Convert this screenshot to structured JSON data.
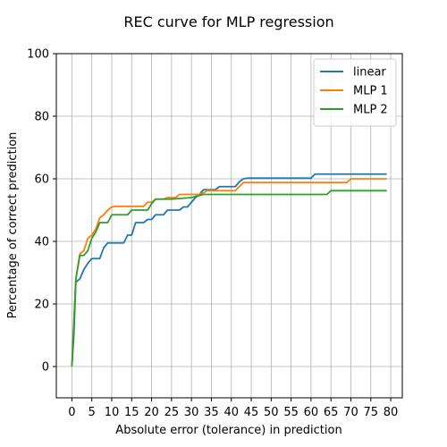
{
  "chart_data": {
    "type": "line",
    "title": "REC curve for MLP regression",
    "xlabel": "Absolute error (tolerance) in prediction",
    "ylabel": "Percentage of correct prediction",
    "xlim": [
      -3.9,
      82.9
    ],
    "ylim": [
      -10,
      100
    ],
    "xticks": [
      0,
      5,
      10,
      15,
      20,
      25,
      30,
      35,
      40,
      45,
      50,
      55,
      60,
      65,
      70,
      75,
      80
    ],
    "yticks": [
      0,
      20,
      40,
      60,
      80,
      100
    ],
    "grid": true,
    "legend_position": "top-right",
    "series": [
      {
        "name": "linear",
        "color": "#1f77b4",
        "points": [
          [
            0,
            0
          ],
          [
            0.5,
            10
          ],
          [
            1,
            27
          ],
          [
            2,
            28
          ],
          [
            3,
            31
          ],
          [
            4,
            33
          ],
          [
            5,
            34.5
          ],
          [
            6,
            34.5
          ],
          [
            7,
            34.5
          ],
          [
            8,
            38
          ],
          [
            9,
            39.5
          ],
          [
            10,
            39.5
          ],
          [
            11,
            39.5
          ],
          [
            12,
            39.5
          ],
          [
            13,
            39.5
          ],
          [
            14,
            42
          ],
          [
            15,
            42
          ],
          [
            16,
            46
          ],
          [
            17,
            46
          ],
          [
            18,
            46
          ],
          [
            19,
            47
          ],
          [
            20,
            47
          ],
          [
            21,
            48.5
          ],
          [
            22,
            48.5
          ],
          [
            23,
            48.5
          ],
          [
            24,
            50
          ],
          [
            25,
            50
          ],
          [
            26,
            50
          ],
          [
            27,
            50
          ],
          [
            28,
            51
          ],
          [
            29,
            51
          ],
          [
            30,
            52.5
          ],
          [
            31,
            54
          ],
          [
            32,
            55
          ],
          [
            33,
            56.5
          ],
          [
            34,
            56.5
          ],
          [
            35,
            56.5
          ],
          [
            36,
            56.5
          ],
          [
            37,
            57.5
          ],
          [
            38,
            57.5
          ],
          [
            39,
            57.5
          ],
          [
            40,
            57.5
          ],
          [
            41,
            57.5
          ],
          [
            42,
            59
          ],
          [
            43,
            60
          ],
          [
            44,
            60.2
          ],
          [
            50,
            60.2
          ],
          [
            55,
            60.2
          ],
          [
            60,
            60.2
          ],
          [
            61,
            61.5
          ],
          [
            65,
            61.5
          ],
          [
            70,
            61.5
          ],
          [
            75,
            61.5
          ],
          [
            79,
            61.5
          ]
        ]
      },
      {
        "name": "MLP 1",
        "color": "#ff7f0e",
        "points": [
          [
            0,
            0
          ],
          [
            0.5,
            15
          ],
          [
            1,
            28
          ],
          [
            2,
            36
          ],
          [
            3,
            37
          ],
          [
            4,
            41
          ],
          [
            5,
            42
          ],
          [
            6,
            44
          ],
          [
            7,
            47.5
          ],
          [
            8,
            48.5
          ],
          [
            9,
            50
          ],
          [
            10,
            51
          ],
          [
            11,
            51.2
          ],
          [
            12,
            51.2
          ],
          [
            13,
            51.2
          ],
          [
            14,
            51.2
          ],
          [
            15,
            51.2
          ],
          [
            16,
            51.2
          ],
          [
            17,
            51.2
          ],
          [
            18,
            51.2
          ],
          [
            19,
            52.5
          ],
          [
            20,
            52.5
          ],
          [
            21,
            53.5
          ],
          [
            22,
            53.5
          ],
          [
            23,
            53.5
          ],
          [
            24,
            54
          ],
          [
            25,
            54
          ],
          [
            26,
            54
          ],
          [
            27,
            55
          ],
          [
            28,
            55
          ],
          [
            29,
            55
          ],
          [
            30,
            55
          ],
          [
            31,
            55
          ],
          [
            32,
            55
          ],
          [
            33,
            55.5
          ],
          [
            34,
            56.2
          ],
          [
            35,
            56.2
          ],
          [
            36,
            56.2
          ],
          [
            37,
            56.2
          ],
          [
            38,
            56.2
          ],
          [
            39,
            56.2
          ],
          [
            40,
            56.2
          ],
          [
            41,
            56.2
          ],
          [
            42,
            57.5
          ],
          [
            43,
            58.8
          ],
          [
            44,
            58.8
          ],
          [
            50,
            58.8
          ],
          [
            55,
            58.8
          ],
          [
            60,
            58.8
          ],
          [
            65,
            58.8
          ],
          [
            69,
            58.8
          ],
          [
            70,
            60
          ],
          [
            75,
            60
          ],
          [
            79,
            60
          ]
        ]
      },
      {
        "name": "MLP 2",
        "color": "#2ca02c",
        "points": [
          [
            0,
            0
          ],
          [
            0.5,
            13
          ],
          [
            1,
            28
          ],
          [
            2,
            35.5
          ],
          [
            3,
            35.5
          ],
          [
            4,
            37
          ],
          [
            5,
            41
          ],
          [
            6,
            43
          ],
          [
            7,
            46
          ],
          [
            8,
            46
          ],
          [
            9,
            46
          ],
          [
            10,
            48.5
          ],
          [
            11,
            48.5
          ],
          [
            12,
            48.5
          ],
          [
            13,
            48.5
          ],
          [
            14,
            48.5
          ],
          [
            15,
            50
          ],
          [
            16,
            50
          ],
          [
            17,
            50
          ],
          [
            18,
            50
          ],
          [
            19,
            50
          ],
          [
            20,
            52
          ],
          [
            21,
            53.5
          ],
          [
            22,
            53.5
          ],
          [
            25,
            53.5
          ],
          [
            30,
            54
          ],
          [
            33,
            55
          ],
          [
            35,
            55
          ],
          [
            40,
            55
          ],
          [
            45,
            55
          ],
          [
            50,
            55
          ],
          [
            55,
            55
          ],
          [
            60,
            55
          ],
          [
            64,
            55
          ],
          [
            65,
            56.2
          ],
          [
            70,
            56.2
          ],
          [
            75,
            56.2
          ],
          [
            79,
            56.2
          ]
        ]
      }
    ]
  }
}
